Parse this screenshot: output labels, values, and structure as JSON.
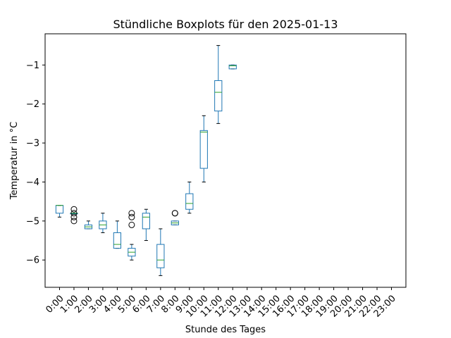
{
  "chart_data": {
    "type": "boxplot",
    "title": "Stündliche Boxplots für den 2025-01-13",
    "xlabel": "Stunde des Tages",
    "ylabel": "Temperatur in °C",
    "ylim": [
      -6.7,
      -0.2
    ],
    "yticks": [
      -6,
      -5,
      -4,
      -3,
      -2,
      -1
    ],
    "ytick_labels": [
      "−6",
      "−5",
      "−4",
      "−3",
      "−2",
      "−1"
    ],
    "grid": false,
    "colors": {
      "box": "#1f77b4",
      "median": "#2ca02c",
      "flier": "#000000"
    },
    "categories": [
      "0:00",
      "1:00",
      "2:00",
      "3:00",
      "4:00",
      "5:00",
      "6:00",
      "7:00",
      "8:00",
      "9:00",
      "10:00",
      "11:00",
      "12:00",
      "13:00",
      "14:00",
      "15:00",
      "16:00",
      "17:00",
      "18:00",
      "19:00",
      "20:00",
      "21:00",
      "22:00",
      "23:00"
    ],
    "boxes": [
      {
        "category": "0:00",
        "whislo": -4.9,
        "q1": -4.8,
        "med": -4.6,
        "q3": -4.6,
        "whishi": -4.6,
        "fliers": []
      },
      {
        "category": "1:00",
        "whislo": -4.8,
        "q1": -4.8,
        "med": -4.8,
        "q3": -4.8,
        "whishi": -4.8,
        "fliers": [
          -4.7,
          -4.8,
          -4.9,
          -5.0
        ]
      },
      {
        "category": "2:00",
        "whislo": -5.2,
        "q1": -5.2,
        "med": -5.15,
        "q3": -5.1,
        "whishi": -5.0,
        "fliers": []
      },
      {
        "category": "3:00",
        "whislo": -5.3,
        "q1": -5.2,
        "med": -5.1,
        "q3": -5.0,
        "whishi": -4.8,
        "fliers": []
      },
      {
        "category": "4:00",
        "whislo": -5.7,
        "q1": -5.7,
        "med": -5.6,
        "q3": -5.3,
        "whishi": -5.0,
        "fliers": []
      },
      {
        "category": "5:00",
        "whislo": -6.0,
        "q1": -5.9,
        "med": -5.8,
        "q3": -5.7,
        "whishi": -5.6,
        "fliers": [
          -4.8,
          -4.9,
          -5.1
        ]
      },
      {
        "category": "6:00",
        "whislo": -5.5,
        "q1": -5.2,
        "med": -4.9,
        "q3": -4.8,
        "whishi": -4.7,
        "fliers": []
      },
      {
        "category": "7:00",
        "whislo": -6.4,
        "q1": -6.2,
        "med": -6.0,
        "q3": -5.6,
        "whishi": -5.2,
        "fliers": []
      },
      {
        "category": "8:00",
        "whislo": -5.1,
        "q1": -5.1,
        "med": -5.05,
        "q3": -5.0,
        "whishi": -5.0,
        "fliers": [
          -4.8,
          -4.8
        ]
      },
      {
        "category": "9:00",
        "whislo": -4.8,
        "q1": -4.7,
        "med": -4.55,
        "q3": -4.3,
        "whishi": -4.0,
        "fliers": []
      },
      {
        "category": "10:00",
        "whislo": -4.0,
        "q1": -3.65,
        "med": -2.72,
        "q3": -2.68,
        "whishi": -2.3,
        "fliers": []
      },
      {
        "category": "11:00",
        "whislo": -2.5,
        "q1": -2.18,
        "med": -1.7,
        "q3": -1.4,
        "whishi": -0.5,
        "fliers": []
      },
      {
        "category": "12:00",
        "whislo": -1.1,
        "q1": -1.1,
        "med": -1.02,
        "q3": -1.0,
        "whishi": -1.0,
        "fliers": []
      }
    ]
  }
}
